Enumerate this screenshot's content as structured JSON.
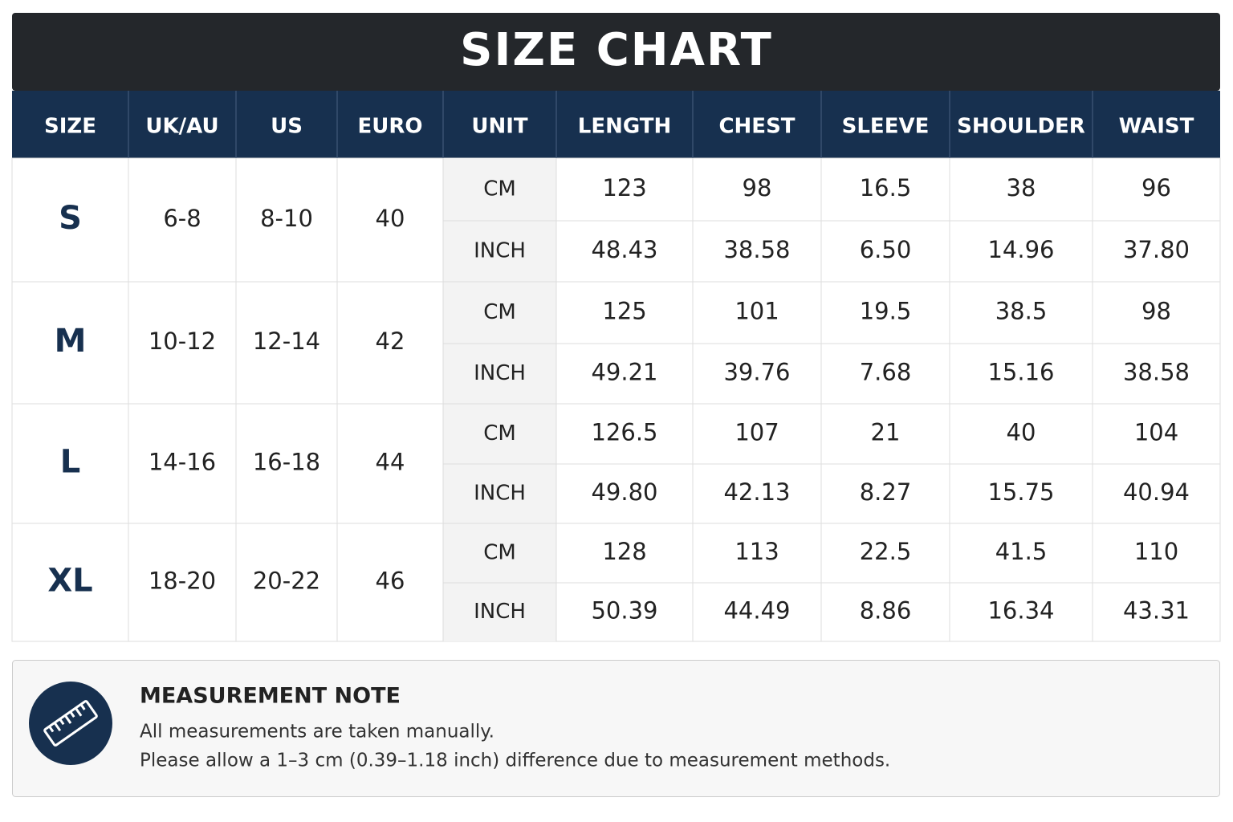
{
  "title": "SIZE CHART",
  "table": {
    "headers": [
      "SIZE",
      "UK/AU",
      "US",
      "EURO",
      "UNIT",
      "LENGTH",
      "CHEST",
      "SLEEVE",
      "SHOULDER",
      "WAIST"
    ],
    "rows": [
      {
        "size": "S",
        "uk_au": "6-8",
        "us": "8-10",
        "euro": "40",
        "cm": {
          "unit": "CM",
          "values": [
            "123",
            "98",
            "16.5",
            "38",
            "96"
          ]
        },
        "inch": {
          "unit": "INCH",
          "values": [
            "48.43",
            "38.58",
            "6.50",
            "14.96",
            "37.80"
          ]
        }
      },
      {
        "size": "M",
        "uk_au": "10-12",
        "us": "12-14",
        "euro": "42",
        "cm": {
          "unit": "CM",
          "values": [
            "125",
            "101",
            "19.5",
            "38.5",
            "98"
          ]
        },
        "inch": {
          "unit": "INCH",
          "values": [
            "49.21",
            "39.76",
            "7.68",
            "15.16",
            "38.58"
          ]
        }
      },
      {
        "size": "L",
        "uk_au": "14-16",
        "us": "16-18",
        "euro": "44",
        "cm": {
          "unit": "CM",
          "values": [
            "126.5",
            "107",
            "21",
            "40",
            "104"
          ]
        },
        "inch": {
          "unit": "INCH",
          "values": [
            "49.80",
            "42.13",
            "8.27",
            "15.75",
            "40.94"
          ]
        }
      },
      {
        "size": "XL",
        "uk_au": "18-20",
        "us": "20-22",
        "euro": "46",
        "cm": {
          "unit": "CM",
          "values": [
            "128",
            "113",
            "22.5",
            "41.5",
            "110"
          ]
        },
        "inch": {
          "unit": "INCH",
          "values": [
            "50.39",
            "44.49",
            "8.86",
            "16.34",
            "43.31"
          ]
        }
      }
    ]
  },
  "note": {
    "title": "MEASUREMENT NOTE",
    "lines": [
      "All measurements are taken manually.",
      "Please allow a 1–3 cm (0.39–1.18 inch) difference due to measurement methods."
    ]
  }
}
